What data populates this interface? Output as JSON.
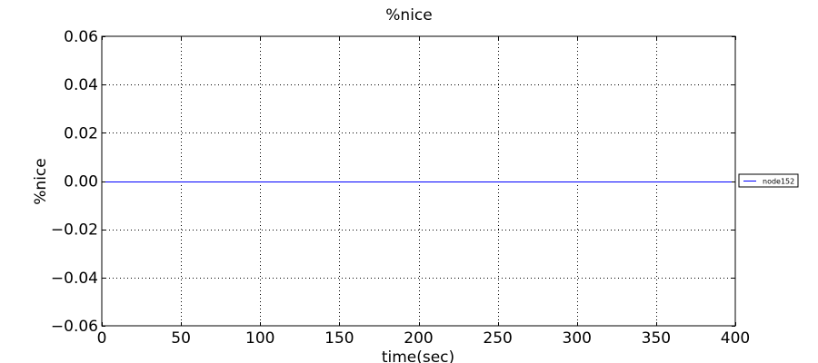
{
  "chart_data": {
    "type": "line",
    "title": "%nice",
    "xlabel": "time(sec)",
    "ylabel": "%nice",
    "xlim": [
      0,
      400
    ],
    "ylim": [
      -0.06,
      0.06
    ],
    "x_ticks": [
      0,
      50,
      100,
      150,
      200,
      250,
      300,
      350,
      400
    ],
    "x_tick_labels": [
      "0",
      "50",
      "100",
      "150",
      "200",
      "250",
      "300",
      "350",
      "400"
    ],
    "y_ticks": [
      -0.06,
      -0.04,
      -0.02,
      0.0,
      0.02,
      0.04,
      0.06
    ],
    "y_tick_labels": [
      "−0.06",
      "−0.04",
      "−0.02",
      "0.00",
      "0.02",
      "0.04",
      "0.06"
    ],
    "grid": true,
    "legend_position": "right",
    "series": [
      {
        "name": "node152",
        "color": "#0000ff",
        "x": [
          0,
          400
        ],
        "y": [
          0.0,
          0.0
        ]
      }
    ]
  }
}
